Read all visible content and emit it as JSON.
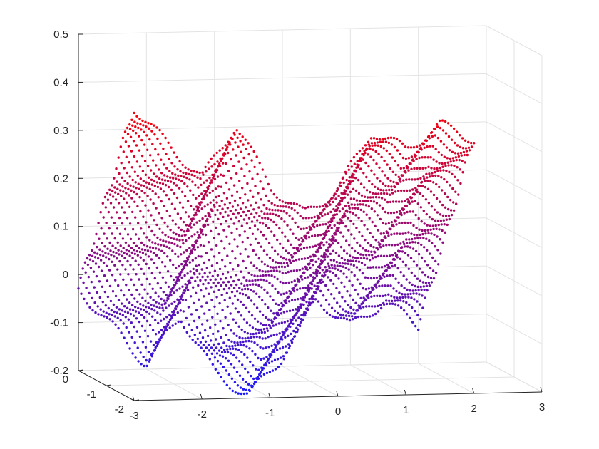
{
  "chart_data": {
    "type": "scatter",
    "subtype": "3d-scatter-surface",
    "title": "",
    "xlabel": "",
    "ylabel": "",
    "zlabel": "",
    "grid": true,
    "xlim": [
      -3,
      3
    ],
    "ylim": [
      -2,
      0
    ],
    "zlim": [
      -0.2,
      0.5
    ],
    "x_ticks": [
      "-3",
      "-2",
      "-1",
      "0",
      "1",
      "2",
      "3"
    ],
    "y_ticks": [
      "0",
      "-1",
      "-2"
    ],
    "z_ticks": [
      "-0.2",
      "-0.1",
      "0",
      "0.1",
      "0.2",
      "0.3",
      "0.4",
      "0.5"
    ],
    "color_low": "#1a1aff",
    "color_high": "#ff0000",
    "grid_x": [
      -3,
      -2.5,
      -2,
      -1.5,
      -1,
      -0.5,
      0,
      0.5,
      1,
      1.5,
      2
    ],
    "grid_y": [
      -2,
      -1.5,
      -1,
      -0.5,
      0
    ],
    "z_values": [
      [
        0.41,
        0.33,
        0.26,
        0.37,
        0.24,
        0.18,
        0.23,
        0.35,
        0.31,
        0.36,
        0.33
      ],
      [
        0.3,
        0.22,
        0.15,
        0.25,
        0.12,
        0.07,
        0.13,
        0.25,
        0.2,
        0.25,
        0.22
      ],
      [
        0.19,
        0.1,
        0.03,
        0.13,
        0.0,
        -0.04,
        0.02,
        0.14,
        0.09,
        0.14,
        0.1
      ],
      [
        0.08,
        0.0,
        -0.08,
        0.02,
        -0.11,
        -0.15,
        -0.08,
        0.04,
        -0.02,
        0.03,
        -0.01
      ],
      [
        -0.03,
        -0.11,
        -0.19,
        -0.09,
        -0.21,
        -0.26,
        -0.18,
        -0.06,
        -0.12,
        -0.07,
        -0.12
      ]
    ]
  }
}
